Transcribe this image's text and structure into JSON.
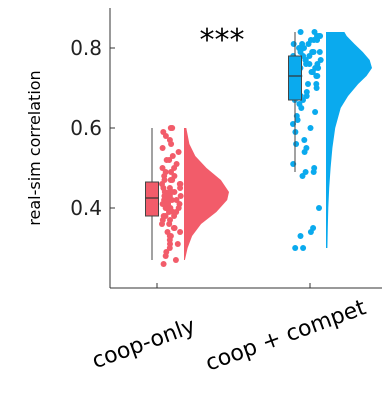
{
  "chart_data": {
    "type": "raincloud",
    "ylabel": "real-sim correlation",
    "ylim": [
      0.2,
      0.9
    ],
    "yticks": [
      0.4,
      0.6,
      0.8
    ],
    "ytick_labels": [
      "0.4",
      "0.6",
      "0.8"
    ],
    "categories": [
      "coop-only",
      "coop + compet"
    ],
    "significance": "***",
    "grid": false,
    "series": [
      {
        "color": "#f25c6a",
        "box": {
          "whisker_low": 0.27,
          "q1": 0.38,
          "median": 0.425,
          "q3": 0.465,
          "whisker_high": 0.6
        },
        "density": [
          [
            0.27,
            0.02
          ],
          [
            0.3,
            0.08
          ],
          [
            0.33,
            0.18
          ],
          [
            0.36,
            0.38
          ],
          [
            0.39,
            0.72
          ],
          [
            0.42,
            0.96
          ],
          [
            0.44,
            1.0
          ],
          [
            0.47,
            0.82
          ],
          [
            0.5,
            0.5
          ],
          [
            0.53,
            0.25
          ],
          [
            0.56,
            0.12
          ],
          [
            0.6,
            0.05
          ]
        ],
        "points": [
          0.6,
          0.6,
          0.59,
          0.58,
          0.57,
          0.56,
          0.55,
          0.54,
          0.53,
          0.52,
          0.52,
          0.51,
          0.5,
          0.5,
          0.49,
          0.49,
          0.48,
          0.48,
          0.47,
          0.47,
          0.47,
          0.46,
          0.46,
          0.46,
          0.45,
          0.45,
          0.45,
          0.44,
          0.44,
          0.44,
          0.44,
          0.43,
          0.43,
          0.43,
          0.43,
          0.42,
          0.42,
          0.42,
          0.42,
          0.42,
          0.41,
          0.41,
          0.41,
          0.41,
          0.4,
          0.4,
          0.4,
          0.4,
          0.39,
          0.39,
          0.39,
          0.38,
          0.38,
          0.38,
          0.37,
          0.37,
          0.36,
          0.36,
          0.35,
          0.35,
          0.34,
          0.34,
          0.33,
          0.33,
          0.32,
          0.31,
          0.31,
          0.3,
          0.29,
          0.28,
          0.27,
          0.26
        ]
      },
      {
        "color": "#0aaaee",
        "box": {
          "whisker_low": 0.49,
          "q1": 0.67,
          "median": 0.73,
          "q3": 0.78,
          "whisker_high": 0.84
        },
        "density": [
          [
            0.3,
            0.03
          ],
          [
            0.35,
            0.04
          ],
          [
            0.4,
            0.05
          ],
          [
            0.45,
            0.07
          ],
          [
            0.5,
            0.1
          ],
          [
            0.55,
            0.14
          ],
          [
            0.6,
            0.2
          ],
          [
            0.65,
            0.32
          ],
          [
            0.68,
            0.48
          ],
          [
            0.71,
            0.7
          ],
          [
            0.73,
            0.88
          ],
          [
            0.75,
            1.0
          ],
          [
            0.77,
            0.95
          ],
          [
            0.79,
            0.8
          ],
          [
            0.81,
            0.62
          ],
          [
            0.83,
            0.45
          ],
          [
            0.84,
            0.4
          ]
        ],
        "points": [
          0.84,
          0.84,
          0.83,
          0.83,
          0.83,
          0.82,
          0.82,
          0.82,
          0.81,
          0.81,
          0.81,
          0.8,
          0.8,
          0.8,
          0.79,
          0.79,
          0.79,
          0.79,
          0.78,
          0.78,
          0.78,
          0.77,
          0.77,
          0.77,
          0.77,
          0.76,
          0.76,
          0.76,
          0.76,
          0.75,
          0.75,
          0.75,
          0.75,
          0.74,
          0.74,
          0.74,
          0.74,
          0.73,
          0.73,
          0.73,
          0.72,
          0.72,
          0.72,
          0.71,
          0.71,
          0.71,
          0.7,
          0.7,
          0.69,
          0.69,
          0.68,
          0.68,
          0.67,
          0.67,
          0.66,
          0.65,
          0.64,
          0.63,
          0.62,
          0.61,
          0.6,
          0.59,
          0.57,
          0.56,
          0.55,
          0.54,
          0.51,
          0.5,
          0.49,
          0.49,
          0.48,
          0.4,
          0.35,
          0.34,
          0.33,
          0.3,
          0.3
        ]
      }
    ]
  }
}
